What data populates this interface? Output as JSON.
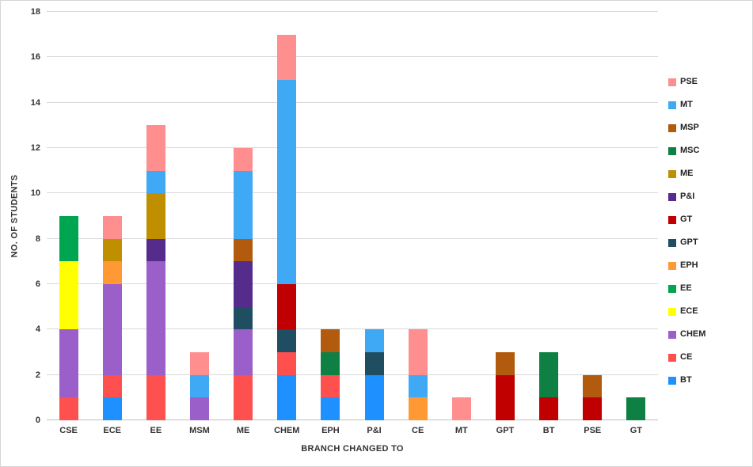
{
  "chart_data": {
    "type": "bar",
    "stacked": true,
    "xlabel": "BRANCH CHANGED TO",
    "ylabel": "NO. OF STUDENTS",
    "ylim": [
      0,
      18
    ],
    "ytick_step": 2,
    "grid": true,
    "categories": [
      "CSE",
      "ECE",
      "EE",
      "MSM",
      "ME",
      "CHEM",
      "EPH",
      "P&I",
      "CE",
      "MT",
      "GPT",
      "BT",
      "PSE",
      "GT"
    ],
    "series": [
      {
        "name": "BT",
        "color": "#1E90FF",
        "values": [
          0,
          1,
          0,
          0,
          0,
          2,
          1,
          2,
          0,
          0,
          0,
          0,
          0,
          0
        ]
      },
      {
        "name": "CE",
        "color": "#FF5050",
        "values": [
          1,
          1,
          2,
          0,
          2,
          1,
          1,
          0,
          0,
          0,
          0,
          0,
          0,
          0
        ]
      },
      {
        "name": "CHEM",
        "color": "#9B5FC9",
        "values": [
          3,
          4,
          5,
          1,
          2,
          0,
          0,
          0,
          0,
          0,
          0,
          0,
          0,
          0
        ]
      },
      {
        "name": "ECE",
        "color": "#FFFF00",
        "values": [
          3,
          0,
          0,
          0,
          0,
          0,
          0,
          0,
          0,
          0,
          0,
          0,
          0,
          0
        ]
      },
      {
        "name": "EE",
        "color": "#00A551",
        "values": [
          2,
          0,
          0,
          0,
          0,
          0,
          0,
          0,
          0,
          0,
          0,
          0,
          0,
          0
        ]
      },
      {
        "name": "EPH",
        "color": "#FF9933",
        "values": [
          0,
          1,
          0,
          0,
          0,
          0,
          0,
          0,
          1,
          0,
          0,
          0,
          0,
          0
        ]
      },
      {
        "name": "GPT",
        "color": "#1F4E63",
        "values": [
          0,
          0,
          0,
          0,
          1,
          1,
          0,
          1,
          0,
          0,
          0,
          0,
          0,
          0
        ]
      },
      {
        "name": "GT",
        "color": "#C00000",
        "values": [
          0,
          0,
          0,
          0,
          0,
          2,
          0,
          0,
          0,
          0,
          2,
          1,
          1,
          0
        ]
      },
      {
        "name": "P&I",
        "color": "#552B8C",
        "values": [
          0,
          0,
          1,
          0,
          2,
          0,
          0,
          0,
          0,
          0,
          0,
          0,
          0,
          0
        ]
      },
      {
        "name": "ME",
        "color": "#BF8F00",
        "values": [
          0,
          1,
          2,
          0,
          0,
          0,
          0,
          0,
          0,
          0,
          0,
          0,
          0,
          0
        ]
      },
      {
        "name": "MSC",
        "color": "#0E8044",
        "values": [
          0,
          0,
          0,
          0,
          0,
          0,
          1,
          0,
          0,
          0,
          0,
          2,
          0,
          1
        ]
      },
      {
        "name": "MSP",
        "color": "#B25A0D",
        "values": [
          0,
          0,
          0,
          0,
          1,
          0,
          1,
          0,
          0,
          0,
          1,
          0,
          1,
          0
        ]
      },
      {
        "name": "MT",
        "color": "#3FA9F5",
        "values": [
          0,
          0,
          1,
          1,
          3,
          9,
          0,
          1,
          1,
          0,
          0,
          0,
          0,
          0
        ]
      },
      {
        "name": "PSE",
        "color": "#FF8F8F",
        "values": [
          0,
          1,
          2,
          1,
          1,
          2,
          0,
          0,
          2,
          1,
          0,
          0,
          0,
          0
        ]
      }
    ],
    "legend": {
      "position": "right",
      "order_top_to_bottom": [
        "PSE",
        "MT",
        "MSP",
        "MSC",
        "ME",
        "P&I",
        "GT",
        "GPT",
        "EPH",
        "EE",
        "ECE",
        "CHEM",
        "CE",
        "BT"
      ]
    }
  }
}
